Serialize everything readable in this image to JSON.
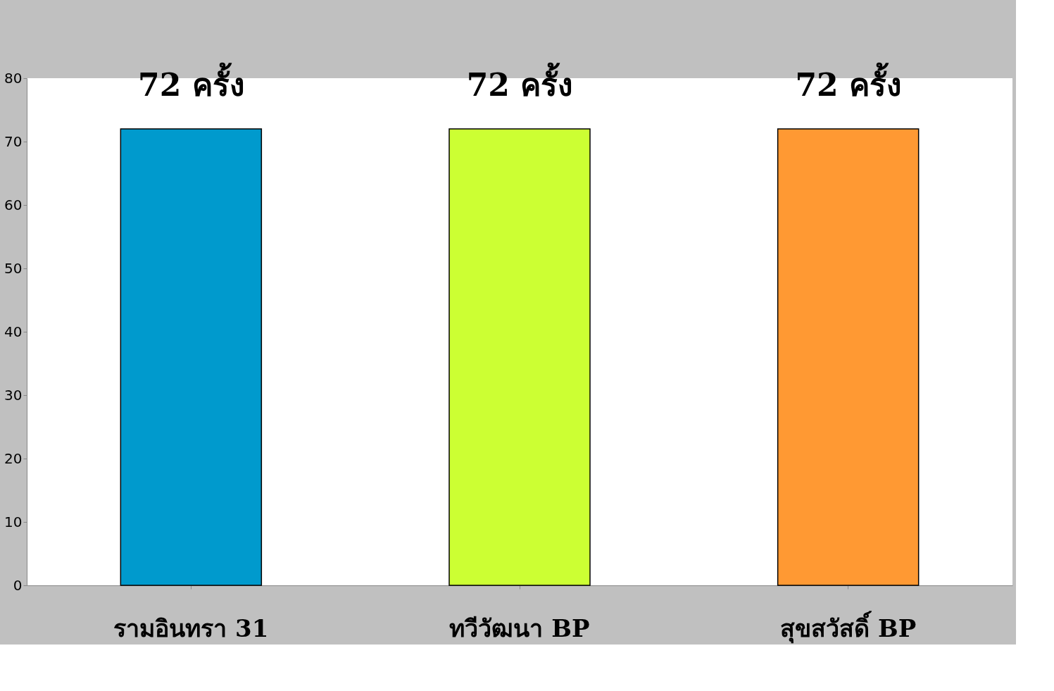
{
  "chart_data": {
    "type": "bar",
    "categories": [
      "รามอินทรา 31",
      "ทวีวัฒนา BP",
      "สุขสวัสดิ์ BP"
    ],
    "values": [
      72,
      72,
      72
    ],
    "colors": [
      "#009acd",
      "#ccff33",
      "#ff9933"
    ],
    "value_labels": [
      "72  ครั้ง",
      "72 ครั้ง",
      "72 ครั้ง"
    ],
    "ylim": [
      0,
      80
    ],
    "yticks": [
      0,
      10,
      20,
      30,
      40,
      50,
      60,
      70,
      80
    ],
    "grid": false
  }
}
